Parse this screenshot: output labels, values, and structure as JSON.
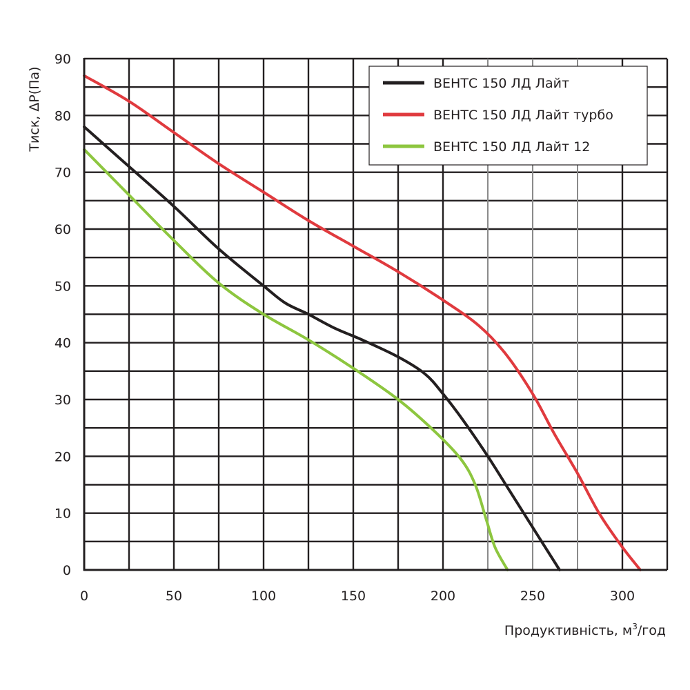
{
  "chart_data": {
    "type": "line",
    "title": "",
    "xlabel": "Продуктивність, м",
    "xlabel_sup": "3",
    "xlabel_tail": "/год",
    "ylabel": "Тиск, ΔP(Па)",
    "xlim": [
      0,
      325
    ],
    "ylim": [
      0,
      90
    ],
    "x_ticks": [
      0,
      50,
      100,
      150,
      200,
      250,
      300
    ],
    "y_ticks": [
      0,
      10,
      20,
      30,
      40,
      50,
      60,
      70,
      80,
      90
    ],
    "x_gridlines": [
      0,
      25,
      50,
      75,
      100,
      125,
      150,
      175,
      200,
      225,
      250,
      275,
      300,
      325
    ],
    "x_gridlines_light": [
      225,
      250,
      275
    ],
    "y_gridlines": [
      0,
      5,
      10,
      15,
      20,
      25,
      30,
      35,
      40,
      45,
      50,
      55,
      60,
      65,
      70,
      75,
      80,
      85,
      90
    ],
    "legend_position": "top-right",
    "series": [
      {
        "name": "ВЕНТС 150 ЛД Лайт",
        "color": "#231f20",
        "points": [
          [
            0,
            78
          ],
          [
            25,
            71
          ],
          [
            50,
            64
          ],
          [
            75,
            56.5
          ],
          [
            100,
            50
          ],
          [
            112,
            47
          ],
          [
            125,
            45
          ],
          [
            140,
            42.5
          ],
          [
            155,
            40.5
          ],
          [
            175,
            37.5
          ],
          [
            190,
            34.5
          ],
          [
            200,
            31
          ],
          [
            212,
            26
          ],
          [
            225,
            20
          ],
          [
            237,
            14
          ],
          [
            250,
            7.5
          ],
          [
            265,
            0
          ]
        ]
      },
      {
        "name": "ВЕНТС 150 ЛД Лайт турбо",
        "color": "#e03a3e",
        "points": [
          [
            0,
            87
          ],
          [
            25,
            82.5
          ],
          [
            50,
            77
          ],
          [
            75,
            71.5
          ],
          [
            100,
            66.5
          ],
          [
            125,
            61.5
          ],
          [
            150,
            57
          ],
          [
            175,
            52.5
          ],
          [
            200,
            47.5
          ],
          [
            220,
            43
          ],
          [
            235,
            38
          ],
          [
            250,
            31
          ],
          [
            262,
            24
          ],
          [
            275,
            17
          ],
          [
            287,
            10
          ],
          [
            300,
            4
          ],
          [
            310,
            0
          ]
        ]
      },
      {
        "name": "ВЕНТС 150 ЛД Лайт 12",
        "color": "#8dc63f",
        "points": [
          [
            0,
            74
          ],
          [
            25,
            66
          ],
          [
            50,
            58
          ],
          [
            75,
            50.5
          ],
          [
            100,
            45
          ],
          [
            125,
            40.5
          ],
          [
            150,
            35.5
          ],
          [
            175,
            30
          ],
          [
            195,
            24.5
          ],
          [
            210,
            19.5
          ],
          [
            218,
            15
          ],
          [
            224,
            9
          ],
          [
            229,
            4
          ],
          [
            236,
            0
          ]
        ]
      }
    ]
  }
}
